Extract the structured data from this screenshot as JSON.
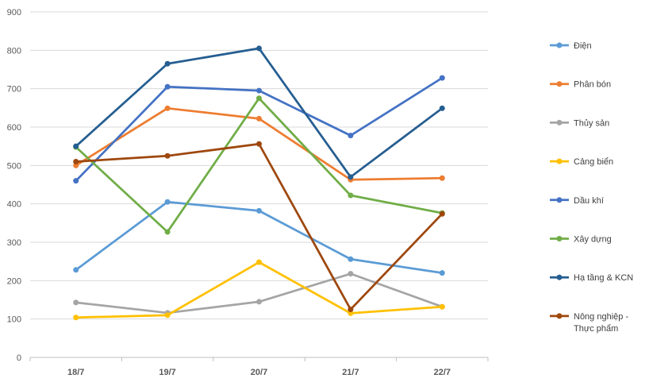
{
  "chart_data": {
    "type": "line",
    "categories": [
      "18/7",
      "19/7",
      "20/7",
      "21/7",
      "22/7"
    ],
    "ylim": [
      0,
      900
    ],
    "yticks": [
      0,
      100,
      200,
      300,
      400,
      500,
      600,
      700,
      800,
      900
    ],
    "grid": true,
    "legend_position": "right",
    "series": [
      {
        "name": "Điện",
        "color": "#5B9BD5",
        "values": [
          228,
          405,
          382,
          256,
          220
        ]
      },
      {
        "name": "Phân bón",
        "color": "#ED7D31",
        "values": [
          500,
          649,
          622,
          463,
          467
        ]
      },
      {
        "name": "Thủy sản",
        "color": "#A5A5A5",
        "values": [
          143,
          116,
          145,
          218,
          132
        ]
      },
      {
        "name": "Cảng biển",
        "color": "#FFC000",
        "values": [
          104,
          110,
          248,
          115,
          132
        ]
      },
      {
        "name": "Dầu khí",
        "color": "#4472C4",
        "values": [
          460,
          705,
          695,
          578,
          728
        ]
      },
      {
        "name": "Xây dựng",
        "color": "#70AD47",
        "values": [
          548,
          327,
          675,
          422,
          376
        ]
      },
      {
        "name": "Hạ tầng & KCN",
        "color": "#255E91",
        "values": [
          550,
          765,
          805,
          470,
          649
        ]
      },
      {
        "name": "Nông nghiệp - Thực phẩm",
        "name_lines": [
          "Nông nghiệp -",
          "Thực phẩm"
        ],
        "color": "#9E480E",
        "values": [
          510,
          525,
          556,
          125,
          374
        ]
      }
    ]
  }
}
